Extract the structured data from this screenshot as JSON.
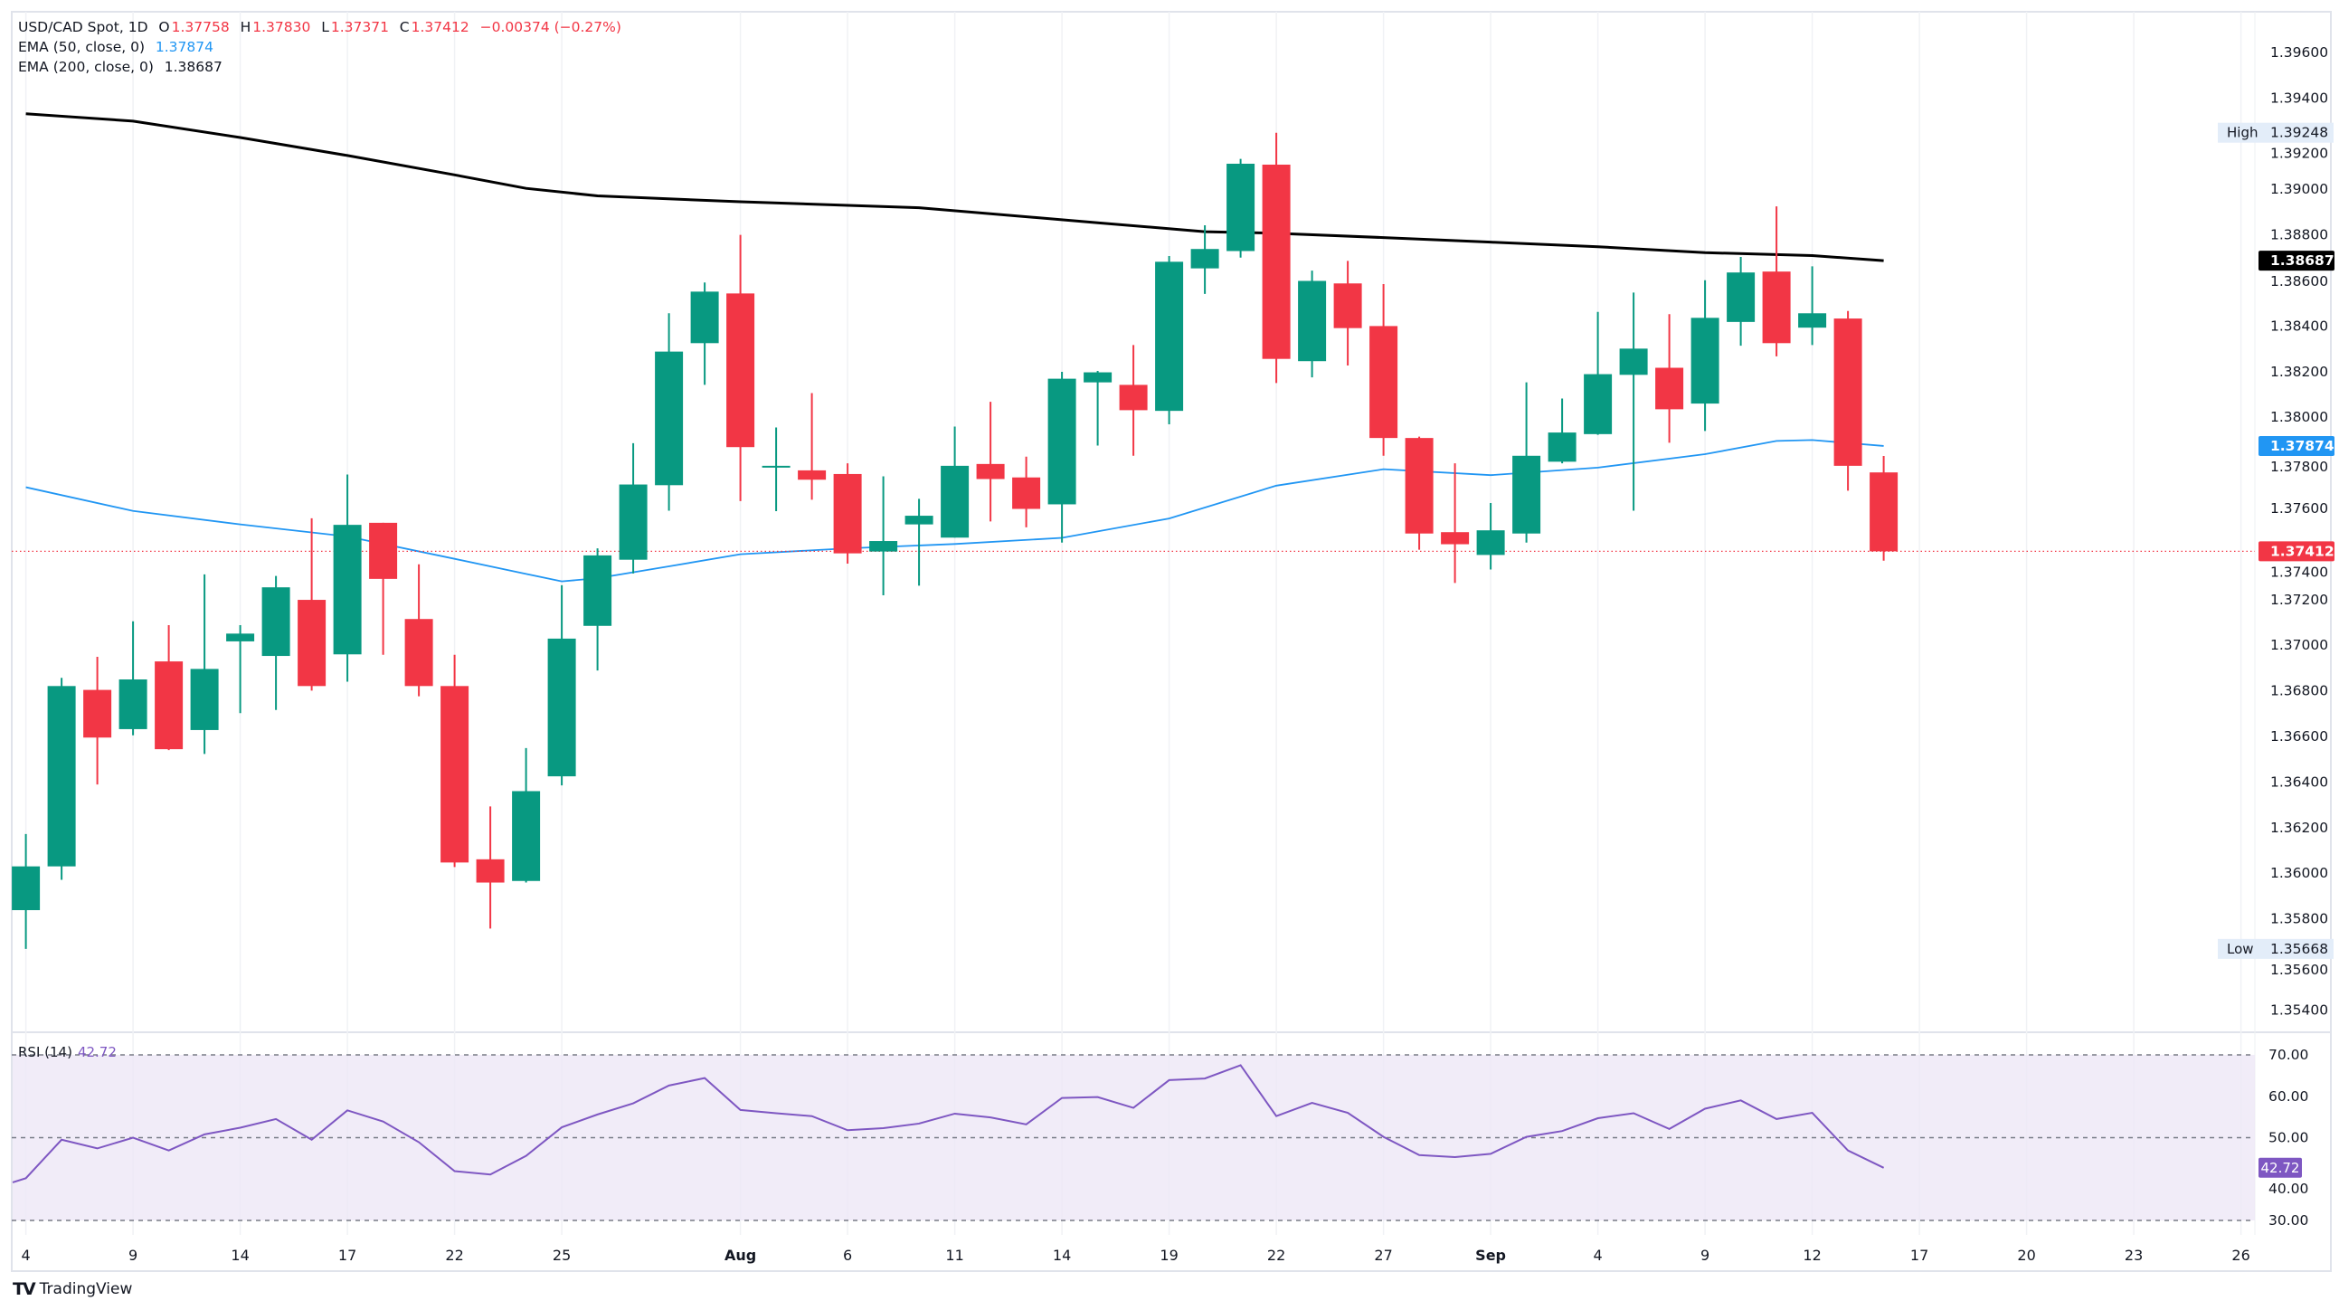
{
  "legend": {
    "symbol": "USD/CAD Spot, 1D",
    "open_label": "O",
    "open": "1.37758",
    "high_label": "H",
    "high": "1.37830",
    "low_label": "L",
    "low": "1.37371",
    "close_label": "C",
    "close": "1.37412",
    "change": "−0.00374 (−0.27%)",
    "ema50_label": "EMA (50, close, 0)",
    "ema50_value": "1.37874",
    "ema200_label": "EMA (200, close, 0)",
    "ema200_value": "1.38687"
  },
  "rsi_legend": {
    "label": "RSI (14)",
    "value": "42.72"
  },
  "branding": {
    "logo": "TradingView"
  },
  "colors": {
    "up": "#089981",
    "down": "#f23645",
    "ema50": "#2196f3",
    "ema200": "#000000",
    "rsi": "#7e57c2",
    "rsi_band": "#ede7f6"
  },
  "chart_data": [
    {
      "type": "candlestick",
      "title": "USD/CAD Spot, 1D",
      "fields": [
        "date",
        "open",
        "high",
        "low",
        "close"
      ],
      "candles": [
        [
          "Jul 4",
          1.35838,
          1.36172,
          1.35668,
          1.3603
        ],
        [
          "Jul 7",
          1.3603,
          1.36857,
          1.35971,
          1.36821
        ],
        [
          "Jul 8",
          1.36804,
          1.36949,
          1.36389,
          1.36595
        ],
        [
          "Jul 9",
          1.36632,
          1.37105,
          1.36605,
          1.3685
        ],
        [
          "Jul 10",
          1.36929,
          1.37088,
          1.3654,
          1.36544
        ],
        [
          "Jul 11",
          1.36628,
          1.37311,
          1.36523,
          1.36896
        ],
        [
          "Jul 14",
          1.37017,
          1.37088,
          1.36702,
          1.37051
        ],
        [
          "Jul 15",
          1.36953,
          1.37304,
          1.36716,
          1.37254
        ],
        [
          "Jul 16",
          1.37199,
          1.37557,
          1.36801,
          1.36821
        ],
        [
          "Jul 17",
          1.3696,
          1.37749,
          1.3684,
          1.37528
        ],
        [
          "Jul 18",
          1.37537,
          1.37537,
          1.36958,
          1.37291
        ],
        [
          "Jul 21",
          1.37115,
          1.37355,
          1.36776,
          1.36821
        ],
        [
          "Jul 22",
          1.36821,
          1.36958,
          1.36027,
          1.36047
        ],
        [
          "Jul 23",
          1.36061,
          1.36293,
          1.35757,
          1.35959
        ],
        [
          "Jul 24",
          1.35966,
          1.36549,
          1.35959,
          1.3636
        ],
        [
          "Jul 25",
          1.36425,
          1.37263,
          1.36385,
          1.37029
        ],
        [
          "Jul 28",
          1.37085,
          1.37425,
          1.36889,
          1.37394
        ],
        [
          "Jul 29",
          1.37375,
          1.37886,
          1.37315,
          1.37705
        ],
        [
          "Jul 30",
          1.37702,
          1.38456,
          1.3759,
          1.38288
        ],
        [
          "Jul 31",
          1.38325,
          1.38591,
          1.38142,
          1.38551
        ],
        [
          "Aug 1",
          1.38543,
          1.388,
          1.37632,
          1.37869
        ],
        [
          "Aug 4",
          1.37787,
          1.37955,
          1.37588,
          1.37787
        ],
        [
          "Aug 5",
          1.37767,
          1.38106,
          1.37638,
          1.37726
        ],
        [
          "Aug 6",
          1.37751,
          1.37798,
          1.37358,
          1.37403
        ],
        [
          "Aug 7",
          1.37411,
          1.37741,
          1.37219,
          1.37457
        ],
        [
          "Aug 8",
          1.3753,
          1.37642,
          1.37261,
          1.37568
        ],
        [
          "Aug 11",
          1.37472,
          1.37959,
          1.37472,
          1.37787
        ],
        [
          "Aug 12",
          1.37795,
          1.38068,
          1.37543,
          1.37729
        ],
        [
          "Aug 13",
          1.37736,
          1.37827,
          1.37517,
          1.37598
        ],
        [
          "Aug 14",
          1.37618,
          1.38199,
          1.3745,
          1.38169
        ],
        [
          "Aug 15",
          1.38153,
          1.38203,
          1.37876,
          1.38197
        ],
        [
          "Aug 18",
          1.38142,
          1.38317,
          1.37831,
          1.38031
        ],
        [
          "Aug 19",
          1.38028,
          1.38707,
          1.37969,
          1.38682
        ],
        [
          "Aug 20",
          1.38653,
          1.38842,
          1.38541,
          1.38738
        ],
        [
          "Aug 21",
          1.38729,
          1.39133,
          1.387,
          1.39112
        ],
        [
          "Aug 22",
          1.39108,
          1.39248,
          1.3815,
          1.38256
        ],
        [
          "Aug 25",
          1.38246,
          1.38643,
          1.38175,
          1.38598
        ],
        [
          "Aug 26",
          1.38587,
          1.38686,
          1.38227,
          1.38391
        ],
        [
          "Aug 27",
          1.384,
          1.38584,
          1.37831,
          1.37909
        ],
        [
          "Aug 28",
          1.37909,
          1.37915,
          1.37419,
          1.3749
        ],
        [
          "Aug 29",
          1.37496,
          1.37798,
          1.37273,
          1.37443
        ],
        [
          "Sep 1",
          1.37396,
          1.37624,
          1.37332,
          1.37504
        ],
        [
          "Sep 2",
          1.3749,
          1.38153,
          1.3745,
          1.37831
        ],
        [
          "Sep 3",
          1.37805,
          1.38082,
          1.37798,
          1.37933
        ],
        [
          "Sep 4",
          1.37926,
          1.38462,
          1.37923,
          1.38189
        ],
        [
          "Sep 5",
          1.38186,
          1.38547,
          1.3759,
          1.38301
        ],
        [
          "Sep 8",
          1.38217,
          1.38452,
          1.37888,
          1.38035
        ],
        [
          "Sep 9",
          1.3806,
          1.38601,
          1.3794,
          1.38436
        ],
        [
          "Sep 10",
          1.38418,
          1.38703,
          1.38314,
          1.38635
        ],
        [
          "Sep 11",
          1.38639,
          1.38925,
          1.38267,
          1.38325
        ],
        [
          "Sep 12",
          1.38393,
          1.38662,
          1.38317,
          1.38456
        ],
        [
          "Sep 15",
          1.38433,
          1.38466,
          1.37678,
          1.37787
        ],
        [
          "Sep 16",
          1.37758,
          1.3783,
          1.37371,
          1.37412
        ]
      ],
      "ema50": [
        [
          "Jul 4",
          1.37693
        ],
        [
          "Jul 9",
          1.37589
        ],
        [
          "Jul 14",
          1.3753
        ],
        [
          "Jul 17",
          1.37477
        ],
        [
          "Jul 22",
          1.37379
        ],
        [
          "Jul 24",
          1.37313
        ],
        [
          "Jul 25",
          1.3728
        ],
        [
          "Jul 28",
          1.37294
        ],
        [
          "Jul 30",
          1.37346
        ],
        [
          "Aug 1",
          1.37399
        ],
        [
          "Aug 6",
          1.37425
        ],
        [
          "Aug 11",
          1.37444
        ],
        [
          "Aug 14",
          1.37471
        ],
        [
          "Aug 19",
          1.37556
        ],
        [
          "Aug 22",
          1.377
        ],
        [
          "Aug 27",
          1.37772
        ],
        [
          "Sep 1",
          1.37746
        ],
        [
          "Sep 4",
          1.37779
        ],
        [
          "Sep 9",
          1.37838
        ],
        [
          "Sep 11",
          1.37896
        ],
        [
          "Sep 12",
          1.379
        ],
        [
          "Sep 16",
          1.37874
        ]
      ],
      "ema200": [
        [
          "Jul 4",
          1.39331
        ],
        [
          "Jul 9",
          1.39299
        ],
        [
          "Jul 14",
          1.39227
        ],
        [
          "Jul 17",
          1.39148
        ],
        [
          "Jul 22",
          1.39063
        ],
        [
          "Jul 24",
          1.39004
        ],
        [
          "Jul 28",
          1.38971
        ],
        [
          "Aug 1",
          1.38945
        ],
        [
          "Aug 8",
          1.38919
        ],
        [
          "Aug 15",
          1.38853
        ],
        [
          "Aug 20",
          1.38814
        ],
        [
          "Aug 22",
          1.38807
        ],
        [
          "Aug 27",
          1.38788
        ],
        [
          "Sep 1",
          1.38768
        ],
        [
          "Sep 4",
          1.38748
        ],
        [
          "Sep 9",
          1.38722
        ],
        [
          "Sep 12",
          1.38709
        ],
        [
          "Sep 16",
          1.38687
        ]
      ],
      "ylim": [
        1.353,
        1.3975
      ],
      "y_ticks": [
        "1.39600",
        "1.39400",
        "1.39200",
        "1.39000",
        "1.38800",
        "1.38600",
        "1.38400",
        "1.38200",
        "1.38000",
        "1.37800",
        "1.37600",
        "1.37400",
        "1.37200",
        "1.37000",
        "1.36800",
        "1.36600",
        "1.36400",
        "1.36200",
        "1.36000",
        "1.35800",
        "1.35600",
        "1.35400"
      ],
      "price_badges": [
        {
          "label": "High",
          "value": "1.39248",
          "price": 1.39248,
          "kind": "high"
        },
        {
          "label": "",
          "value": "1.38687",
          "price": 1.38687,
          "kind": "ema200"
        },
        {
          "label": "",
          "value": "1.37874",
          "price": 1.37874,
          "kind": "ema50"
        },
        {
          "label": "",
          "value": "1.37412",
          "price": 1.37412,
          "kind": "last"
        },
        {
          "label": "Low",
          "value": "1.35668",
          "price": 1.35668,
          "kind": "low"
        }
      ],
      "last_price_line": 1.37412,
      "x_ticks": [
        {
          "label": "4",
          "date": "Jul 4",
          "bold": false
        },
        {
          "label": "9",
          "date": "Jul 9",
          "bold": false
        },
        {
          "label": "14",
          "date": "Jul 14",
          "bold": false
        },
        {
          "label": "17",
          "date": "Jul 17",
          "bold": false
        },
        {
          "label": "22",
          "date": "Jul 22",
          "bold": false
        },
        {
          "label": "25",
          "date": "Jul 25",
          "bold": false
        },
        {
          "label": "Aug",
          "date": "Aug 1",
          "bold": true
        },
        {
          "label": "6",
          "date": "Aug 6",
          "bold": false
        },
        {
          "label": "11",
          "date": "Aug 11",
          "bold": false
        },
        {
          "label": "14",
          "date": "Aug 14",
          "bold": false
        },
        {
          "label": "19",
          "date": "Aug 19",
          "bold": false
        },
        {
          "label": "22",
          "date": "Aug 22",
          "bold": false
        },
        {
          "label": "27",
          "date": "Aug 27",
          "bold": false
        },
        {
          "label": "Sep",
          "date": "Sep 1",
          "bold": true
        },
        {
          "label": "4",
          "date": "Sep 4",
          "bold": false
        },
        {
          "label": "9",
          "date": "Sep 9",
          "bold": false
        },
        {
          "label": "12",
          "date": "Sep 12",
          "bold": false
        },
        {
          "label": "17",
          "date": "Sep 17",
          "bold": false
        },
        {
          "label": "20",
          "date": "Sep 20",
          "bold": false
        },
        {
          "label": "23",
          "date": "Sep 23",
          "bold": false
        },
        {
          "label": "26",
          "date": "Sep 26",
          "bold": false
        }
      ],
      "grid": "vertical"
    },
    {
      "type": "line",
      "title": "RSI (14)",
      "ylim": [
        25,
        75
      ],
      "y_ticks": [
        "70.00",
        "60.00",
        "50.00",
        "40.00",
        "30.00"
      ],
      "bands": [
        30,
        50,
        70
      ],
      "last_value": "42.72",
      "values": [
        40.2,
        49.5,
        47.4,
        50.0,
        46.9,
        50.8,
        52.4,
        54.5,
        49.5,
        56.6,
        53.9,
        48.9,
        41.9,
        41.1,
        45.6,
        52.5,
        55.6,
        58.3,
        62.6,
        64.4,
        56.7,
        55.9,
        55.2,
        51.8,
        52.3,
        53.4,
        55.8,
        54.9,
        53.2,
        59.6,
        59.8,
        57.2,
        63.9,
        64.3,
        67.5,
        55.2,
        58.4,
        56.0,
        50.2,
        45.8,
        45.3,
        46.1,
        50.2,
        51.6,
        54.7,
        55.9,
        52.1,
        57.0,
        59.0,
        54.5,
        56.0,
        46.9,
        42.72
      ]
    }
  ]
}
